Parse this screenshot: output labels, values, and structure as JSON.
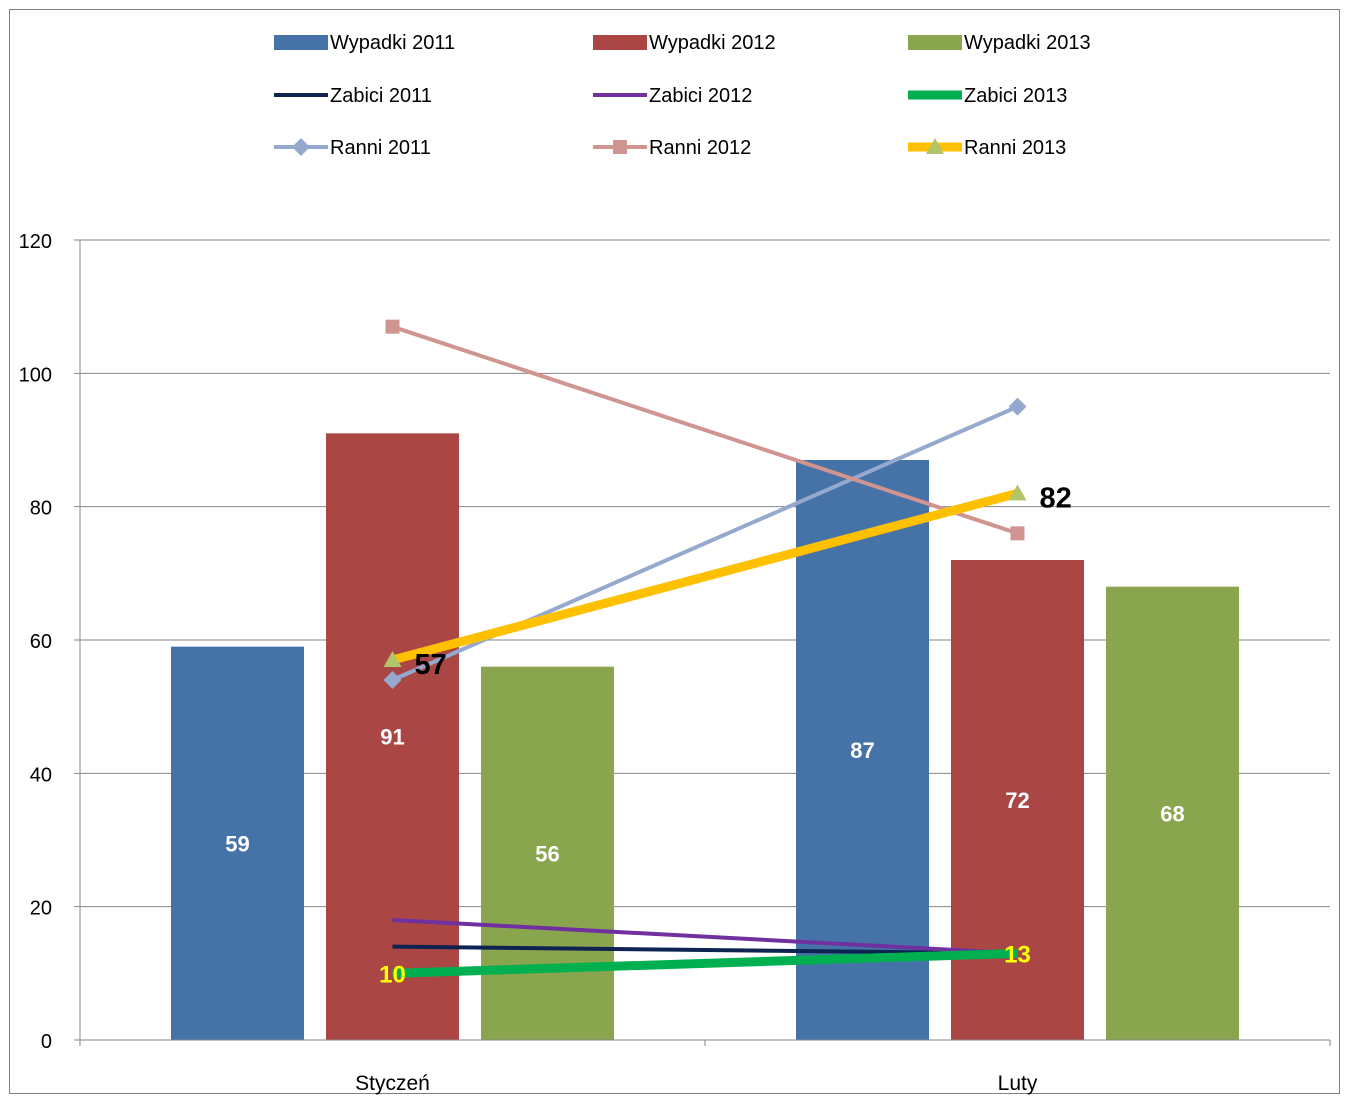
{
  "chart_data": {
    "type": "bar",
    "categories": [
      "Styczeń",
      "Luty"
    ],
    "ylim": [
      0,
      120
    ],
    "yticks": [
      0,
      20,
      40,
      60,
      80,
      100,
      120
    ],
    "grid": true,
    "legend_position": "top",
    "bar_series": [
      {
        "name": "Wypadki 2011",
        "values": [
          59,
          87
        ],
        "color": "#4572A7",
        "label_color": "#FFFFFF"
      },
      {
        "name": "Wypadki 2012",
        "values": [
          91,
          72
        ],
        "color": "#AA4643",
        "label_color": "#FFFFFF"
      },
      {
        "name": "Wypadki 2013",
        "values": [
          56,
          68
        ],
        "color": "#89A54E",
        "label_color": "#FFFFFF"
      }
    ],
    "line_series": [
      {
        "name": "Zabici 2011",
        "values": [
          14,
          13
        ],
        "color": "#0D2350",
        "marker": "none",
        "width": "thin"
      },
      {
        "name": "Zabici 2012",
        "values": [
          18,
          13
        ],
        "color": "#7030A0",
        "marker": "none",
        "width": "thin"
      },
      {
        "name": "Zabici 2013",
        "values": [
          10,
          13
        ],
        "color": "#00B050",
        "marker": "none",
        "width": "thick",
        "labels": [
          "10",
          "13"
        ],
        "label_color": "#FFFF00"
      },
      {
        "name": "Ranni 2011",
        "values": [
          54,
          95
        ],
        "color": "#95A9CF",
        "marker": "diamond",
        "width": "thin"
      },
      {
        "name": "Ranni 2012",
        "values": [
          107,
          76
        ],
        "color": "#D09491",
        "marker": "square",
        "width": "thin"
      },
      {
        "name": "Ranni 2013",
        "values": [
          57,
          82
        ],
        "color": "#FFC000",
        "marker": "triangle",
        "marker_color": "#B3C56B",
        "width": "thick",
        "labels": [
          "57",
          "82"
        ],
        "label_color": "#000000"
      }
    ]
  }
}
